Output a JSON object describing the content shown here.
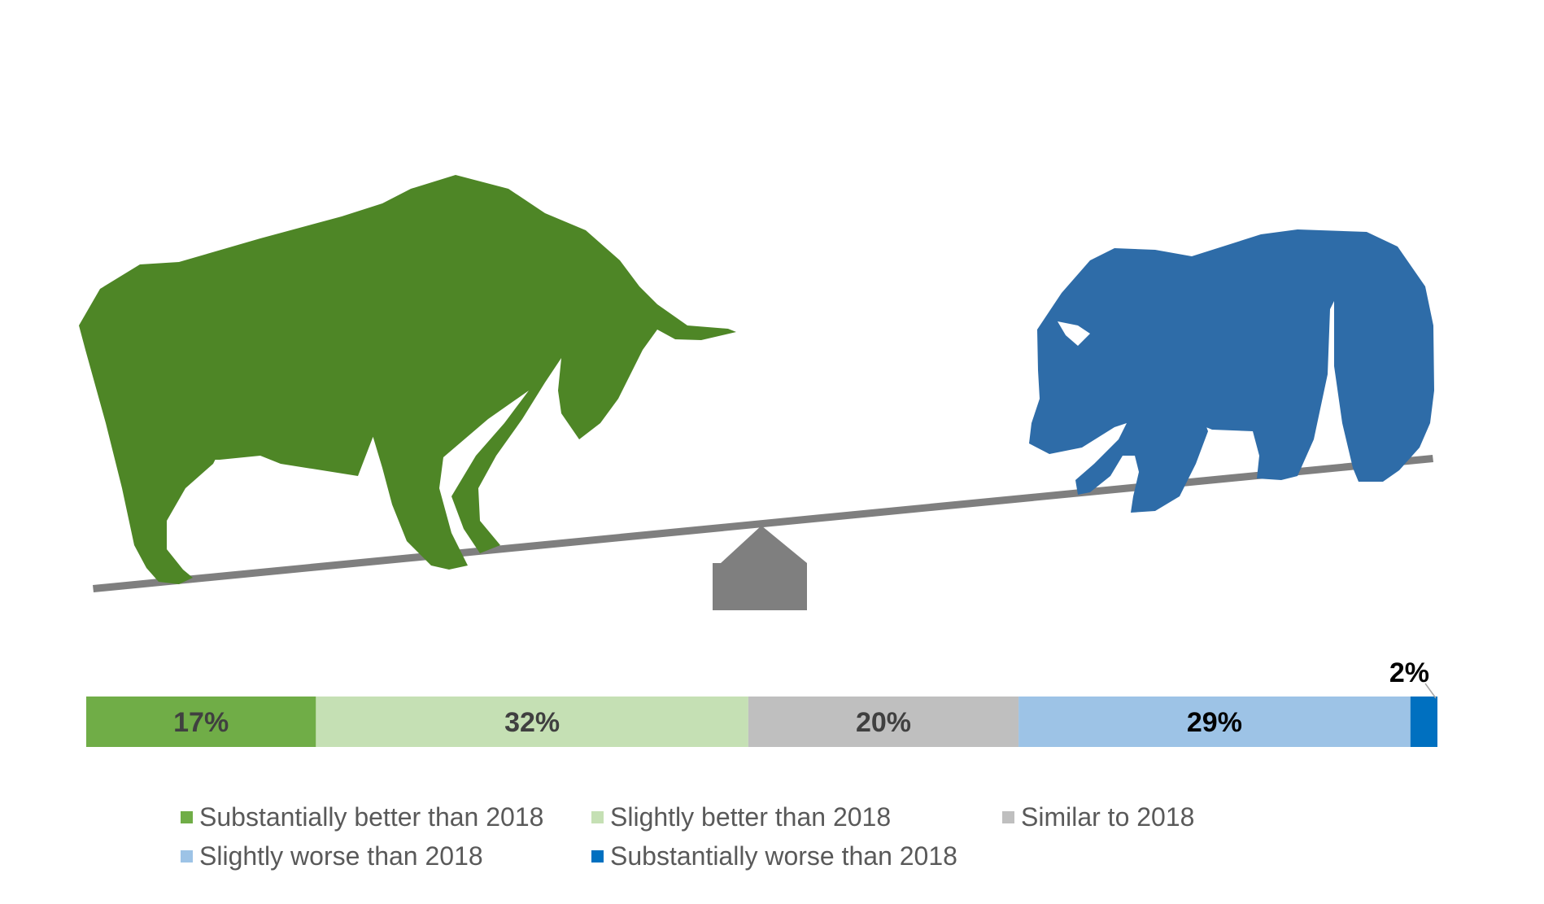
{
  "chart_data": {
    "type": "bar",
    "orientation": "horizontal-stacked",
    "categories": [
      "Substantially better than 2018",
      "Slightly better than 2018",
      "Similar to 2018",
      "Slightly worse than 2018",
      "Substantially worse than 2018"
    ],
    "values": [
      17,
      32,
      20,
      29,
      2
    ],
    "labels": [
      "17%",
      "32%",
      "20%",
      "29%",
      "2%"
    ],
    "colors": [
      "#70AD47",
      "#C5E0B4",
      "#BFBFBF",
      "#9DC3E6",
      "#0070C0"
    ],
    "label_colors": [
      "#404040",
      "#404040",
      "#404040",
      "#000000",
      "#000000"
    ],
    "legend_position": "bottom",
    "grid": false
  },
  "illustration": {
    "bull_color": "#4E8626",
    "bear_color": "#2E6CA8",
    "seesaw_color": "#7F7F7F",
    "icons": [
      "bull-icon",
      "bear-icon",
      "seesaw-icon"
    ]
  }
}
